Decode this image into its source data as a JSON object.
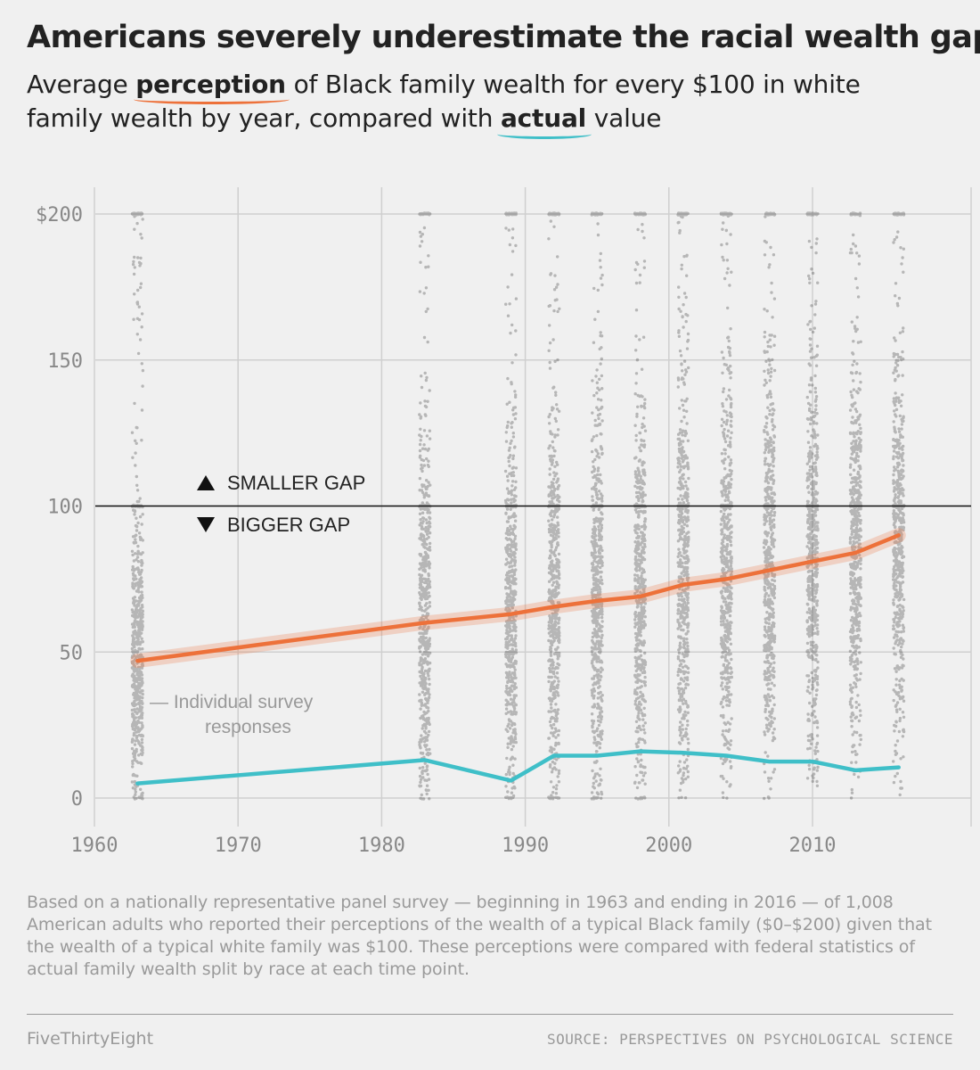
{
  "header": {
    "title": "Americans severely underestimate the racial wealth gap",
    "subtitle_pre": "Average ",
    "subtitle_perception": "perception",
    "subtitle_mid": " of Black family wealth for every $100 in white family wealth by year, compared with ",
    "subtitle_actual": "actual",
    "subtitle_post": " value"
  },
  "chart_data": {
    "type": "line",
    "x_ticks": [
      "1960",
      "1970",
      "1980",
      "1990",
      "2000",
      "2010"
    ],
    "y_ticks": [
      "0",
      "50",
      "100",
      "150",
      "$200"
    ],
    "xlim": [
      1960,
      2017.5
    ],
    "ylim": [
      0,
      200
    ],
    "grid": true,
    "reference_line": 100,
    "survey_years": [
      1963,
      1983,
      1989,
      1992,
      1995,
      1998,
      2001,
      2004,
      2007,
      2010,
      2013,
      2016
    ],
    "series": [
      {
        "key": "perception",
        "color": "#ed713a",
        "x": [
          1963,
          1983,
          1989,
          1992,
          1995,
          1998,
          2001,
          2004,
          2007,
          2010,
          2013,
          2016
        ],
        "y": [
          47,
          60,
          63,
          65.5,
          67.5,
          69,
          73,
          75,
          78,
          81,
          84,
          90
        ]
      },
      {
        "key": "actual",
        "color": "#3fbfc8",
        "x": [
          1963,
          1983,
          1989,
          1992,
          1995,
          1998,
          2001,
          2004,
          2007,
          2010,
          2013,
          2016
        ],
        "y": [
          5,
          13,
          6,
          14.5,
          14.5,
          16,
          15.5,
          14.5,
          12.5,
          12.5,
          9.5,
          10.5
        ]
      }
    ],
    "annotations": {
      "smaller_gap": "SMALLER GAP",
      "bigger_gap": "BIGGER GAP",
      "individual_1": "— Individual survey",
      "individual_2": "responses"
    }
  },
  "footnote": "Based on a nationally representative panel survey — beginning in 1963 and ending in 2016 — of 1,008 American adults who reported their perceptions of the wealth of a typical Black family ($0–$200) given that the wealth of a typical white family was $100. These perceptions were compared with federal statistics of actual family wealth split by race at each time point.",
  "footer": {
    "brand": "FiveThirtyEight",
    "source": "SOURCE: PERSPECTIVES ON PSYCHOLOGICAL SCIENCE"
  },
  "colors": {
    "perception": "#ed713a",
    "actual": "#3fbfc8",
    "points": "#222222"
  }
}
